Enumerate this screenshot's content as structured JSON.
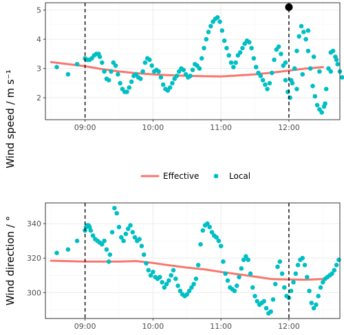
{
  "colors": {
    "effective": "#F8766D",
    "local": "#00BFC4",
    "grid_major": "#ebebeb",
    "grid_minor": "#f5f5f5",
    "panel_border": "#333333",
    "vline": "#000000",
    "marker": "#000000"
  },
  "legend": {
    "effective_label": "Effective",
    "local_label": "Local"
  },
  "chart_data": [
    {
      "type": "scatter",
      "ylabel": "Wind speed / m s⁻¹",
      "xlim": [
        "08:25",
        "12:45"
      ],
      "ylim": [
        1.25,
        5.25
      ],
      "x_ticks": [
        "09:00",
        "10:00",
        "11:00",
        "12:00"
      ],
      "y_ticks": [
        2,
        3,
        4,
        5
      ],
      "grid": true,
      "vlines": [
        "09:00",
        "12:00"
      ],
      "marker_point": {
        "x": "12:00",
        "y": 5.1
      },
      "series": [
        {
          "name": "Effective",
          "kind": "line",
          "x": [
            "08:30",
            "09:00",
            "09:15",
            "09:30",
            "09:45",
            "10:00",
            "10:15",
            "10:30",
            "10:45",
            "11:00",
            "11:15",
            "11:30",
            "11:45",
            "12:00",
            "12:15",
            "12:30"
          ],
          "y": [
            3.22,
            3.08,
            2.98,
            2.9,
            2.84,
            2.8,
            2.77,
            2.75,
            2.74,
            2.73,
            2.76,
            2.8,
            2.86,
            2.93,
            3.0,
            3.05
          ]
        },
        {
          "name": "Local",
          "kind": "points",
          "x_minutes": [
            515,
            525,
            533,
            540,
            542,
            544,
            546,
            548,
            550,
            552,
            553,
            555,
            557,
            559,
            561,
            563,
            565,
            567,
            569,
            571,
            573,
            575,
            577,
            579,
            581,
            583,
            585,
            587,
            589,
            591,
            593,
            595,
            597,
            599,
            601,
            603,
            605,
            607,
            609,
            611,
            613,
            615,
            617,
            619,
            621,
            623,
            625,
            627,
            629,
            631,
            633,
            635,
            637,
            639,
            641,
            643,
            645,
            647,
            649,
            651,
            653,
            655,
            657,
            659,
            661,
            663,
            665,
            667,
            669,
            671,
            673,
            675,
            677,
            679,
            681,
            683,
            685,
            687,
            689,
            691,
            693,
            695,
            697,
            699,
            701,
            703,
            705,
            707,
            709,
            711,
            713,
            715,
            717,
            719,
            721,
            723,
            725,
            727,
            729,
            731,
            733,
            735,
            737,
            739,
            741,
            743,
            745,
            747,
            749,
            751,
            753,
            755,
            757,
            759,
            761,
            763,
            765,
            767,
            717,
            722,
            727,
            732,
            737,
            742,
            747,
            752,
            757,
            762
          ],
          "y": [
            3.05,
            2.8,
            3.15,
            3.35,
            3.3,
            3.3,
            3.35,
            3.45,
            3.5,
            3.5,
            3.4,
            3.2,
            2.9,
            2.65,
            2.6,
            2.9,
            3.2,
            3.1,
            2.8,
            2.5,
            2.3,
            2.2,
            2.2,
            2.35,
            2.55,
            2.75,
            2.8,
            2.7,
            2.65,
            2.9,
            3.2,
            3.35,
            3.3,
            3.1,
            2.9,
            2.95,
            2.9,
            2.7,
            2.45,
            2.3,
            2.25,
            2.35,
            2.5,
            2.65,
            2.75,
            2.9,
            3.0,
            2.95,
            2.8,
            2.7,
            2.75,
            2.95,
            3.15,
            3.1,
            3.0,
            3.35,
            3.7,
            4.0,
            4.25,
            4.45,
            4.6,
            4.7,
            4.75,
            4.6,
            4.3,
            3.95,
            3.7,
            3.45,
            3.2,
            3.05,
            3.2,
            3.45,
            3.55,
            3.7,
            3.85,
            3.95,
            3.9,
            3.7,
            3.35,
            3.05,
            2.85,
            2.75,
            2.6,
            2.45,
            2.3,
            2.5,
            2.85,
            3.3,
            3.65,
            3.75,
            3.5,
            3.1,
            2.6,
            2.2,
            2.0,
            2.5,
            3.0,
            3.6,
            4.1,
            4.45,
            4.25,
            4.0,
            3.6,
            3.0,
            2.4,
            2.05,
            1.75,
            1.6,
            1.5,
            1.7,
            2.3,
            3.0,
            3.55,
            3.6,
            3.4,
            3.15,
            2.9,
            2.7,
            3.2,
            2.6,
            2.3,
            2.8,
            4.3,
            3.4,
            2.9,
            1.8,
            2.9,
            3.3
          ]
        }
      ]
    },
    {
      "type": "scatter",
      "ylabel": "Wind direction / °",
      "xlim": [
        "08:25",
        "12:45"
      ],
      "ylim": [
        285,
        352
      ],
      "x_ticks": [
        "09:00",
        "10:00",
        "11:00",
        "12:00"
      ],
      "y_ticks": [
        300,
        320,
        340
      ],
      "grid": true,
      "vlines": [
        "09:00",
        "12:00"
      ],
      "series": [
        {
          "name": "Effective",
          "kind": "line",
          "x": [
            "08:30",
            "09:00",
            "09:30",
            "09:45",
            "10:00",
            "10:15",
            "10:30",
            "10:45",
            "11:00",
            "11:15",
            "11:30",
            "11:45",
            "12:00",
            "12:15",
            "12:30"
          ],
          "y": [
            318.5,
            318.0,
            318.0,
            318.3,
            317.2,
            315.8,
            314.5,
            313.5,
            312.0,
            310.7,
            309.3,
            307.8,
            307.6,
            307.5,
            307.9
          ]
        },
        {
          "name": "Local",
          "kind": "points",
          "x_minutes": [
            515,
            525,
            533,
            540,
            541,
            542,
            543,
            544,
            545,
            547,
            549,
            551,
            553,
            555,
            557,
            559,
            561,
            562,
            564,
            566,
            568,
            570,
            572,
            574,
            576,
            578,
            580,
            582,
            584,
            586,
            588,
            590,
            592,
            594,
            596,
            598,
            600,
            602,
            604,
            606,
            608,
            610,
            612,
            614,
            616,
            618,
            620,
            622,
            624,
            626,
            628,
            630,
            632,
            634,
            636,
            638,
            640,
            642,
            644,
            646,
            648,
            650,
            652,
            654,
            656,
            658,
            660,
            662,
            664,
            666,
            668,
            670,
            672,
            674,
            676,
            678,
            680,
            682,
            684,
            686,
            688,
            690,
            692,
            694,
            696,
            698,
            700,
            702,
            704,
            706,
            708,
            710,
            712,
            714,
            716,
            718,
            720,
            722,
            724,
            726,
            728,
            730,
            732,
            734,
            736,
            738,
            740,
            742,
            744,
            746,
            748,
            750,
            752,
            754,
            756,
            758,
            760,
            762,
            764
          ],
          "y": [
            323,
            325,
            330,
            336,
            338,
            339,
            339,
            338,
            336,
            333,
            331,
            330,
            329,
            328,
            330,
            325,
            318,
            322,
            335,
            349,
            346,
            338,
            332,
            330,
            334,
            337,
            339,
            335,
            332,
            330,
            331,
            327,
            322,
            317,
            313,
            310,
            312,
            309,
            308,
            309,
            306,
            303,
            305,
            307,
            310,
            313,
            308,
            304,
            301,
            299,
            298,
            299,
            301,
            303,
            305,
            308,
            316,
            328,
            336,
            339,
            340,
            338,
            335,
            333,
            332,
            330,
            327,
            318,
            311,
            307,
            303,
            302,
            301,
            304,
            309,
            314,
            319,
            321,
            319,
            311,
            303,
            298,
            295,
            293,
            294,
            295,
            291,
            288,
            289,
            296,
            305,
            315,
            318,
            311,
            303,
            298,
            297,
            301,
            306,
            311,
            316,
            319,
            320,
            316,
            309,
            301,
            294,
            291,
            293,
            298,
            303,
            306,
            308,
            309,
            310,
            311,
            313,
            316,
            319
          ]
        }
      ]
    }
  ]
}
